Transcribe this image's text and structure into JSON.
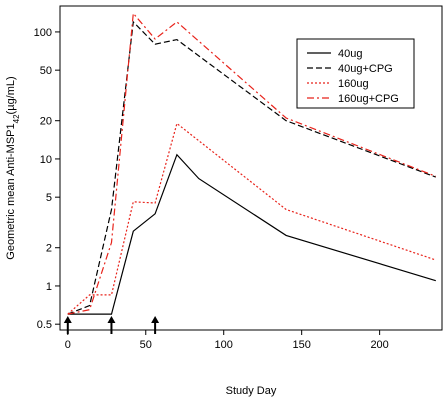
{
  "chart_data": {
    "type": "line",
    "title": "",
    "xlabel": "Study Day",
    "ylabel_main": "Geometric mean Anti-MSP1",
    "ylabel_subscript": "42",
    "ylabel_suffix": "(µg/mL)",
    "x_scale": "linear",
    "y_scale": "log",
    "xlim": [
      -5,
      240
    ],
    "ylim": [
      0.45,
      160
    ],
    "x_ticks": [
      0,
      50,
      100,
      150,
      200
    ],
    "y_ticks": [
      0.5,
      1,
      2,
      5,
      10,
      20,
      50,
      100
    ],
    "grid": false,
    "legend_position": "top-right",
    "series": [
      {
        "name": "40ug",
        "color": "#000000",
        "dash": "solid",
        "x": [
          0,
          28,
          42,
          56,
          70,
          84,
          140,
          236
        ],
        "y": [
          0.6,
          0.6,
          2.7,
          3.7,
          10.8,
          7.0,
          2.5,
          1.1
        ]
      },
      {
        "name": "40ug+CPG",
        "color": "#000000",
        "dash": "dashed",
        "x": [
          0,
          14,
          28,
          42,
          56,
          70,
          140,
          236
        ],
        "y": [
          0.6,
          0.7,
          4.0,
          120,
          80,
          87,
          20,
          7.2
        ]
      },
      {
        "name": "160ug",
        "color": "#e8231b",
        "dash": "dotted",
        "x": [
          0,
          14,
          28,
          42,
          56,
          70,
          140,
          236
        ],
        "y": [
          0.6,
          0.85,
          0.85,
          4.6,
          4.5,
          19.0,
          4.0,
          1.6
        ]
      },
      {
        "name": "160ug+CPG",
        "color": "#e8231b",
        "dash": "dashdot",
        "x": [
          0,
          14,
          28,
          42,
          56,
          70,
          140,
          236
        ],
        "y": [
          0.6,
          0.65,
          2.2,
          140,
          88,
          120,
          21,
          7.3
        ]
      }
    ],
    "vaccination_days": [
      0,
      28,
      56
    ]
  }
}
